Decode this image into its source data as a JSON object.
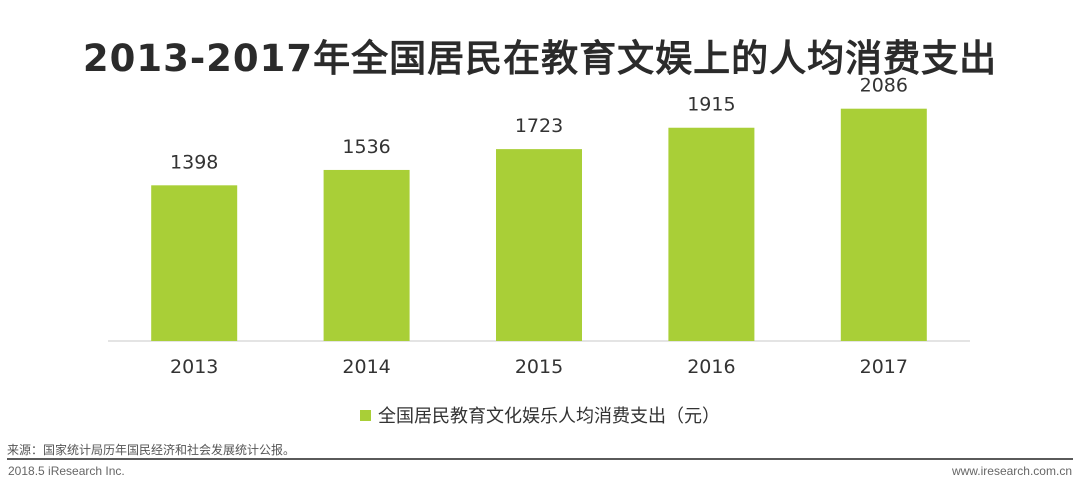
{
  "title": "2013-2017年全国居民在教育文娱上的人均消费支出",
  "chart_data": {
    "type": "bar",
    "categories": [
      "2013",
      "2014",
      "2015",
      "2016",
      "2017"
    ],
    "series": [
      {
        "name": "全国居民教育文化娱乐人均消费支出（元）",
        "values": [
          1398,
          1536,
          1723,
          1915,
          2086
        ]
      }
    ],
    "ylim": [
      0,
      2200
    ],
    "grid": false,
    "legend_position": "bottom",
    "bar_color": "#a9cf37"
  },
  "source": "来源：国家统计局历年国民经济和社会发展统计公报。",
  "footer": {
    "left": "2018.5 iResearch Inc.",
    "right": "www.iresearch.com.cn"
  }
}
